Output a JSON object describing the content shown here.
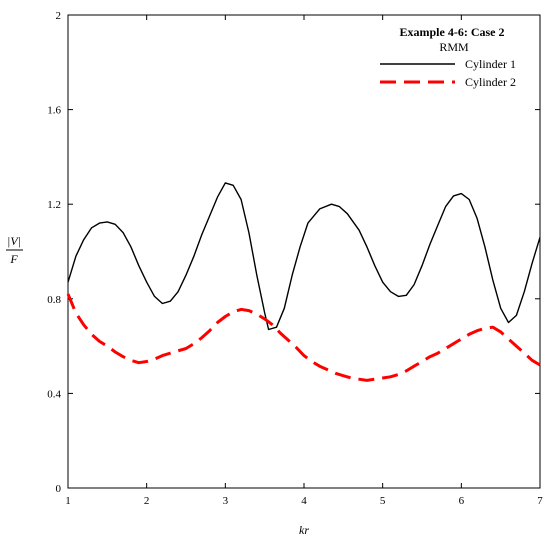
{
  "chart_data": {
    "type": "line",
    "title": "Example 4-6: Case 2",
    "subtitle": "RMM",
    "xlabel": "kr",
    "ylabel_numerator": "|V|",
    "ylabel_denominator": "F",
    "xlim": [
      1,
      7
    ],
    "ylim": [
      0,
      2
    ],
    "x_ticks": [
      1,
      2,
      3,
      4,
      5,
      6,
      7
    ],
    "y_ticks": [
      0,
      0.4,
      0.8,
      1.2,
      1.6,
      2
    ],
    "y_tick_labels": [
      "0",
      "0.4",
      "0.8",
      "1.2",
      "1.6",
      "2"
    ],
    "grid": false,
    "legend_position": "top-right",
    "series": [
      {
        "name": "Cylinder 1",
        "color": "#000000",
        "dash": "solid",
        "points": [
          [
            1.0,
            0.87
          ],
          [
            1.1,
            0.98
          ],
          [
            1.2,
            1.05
          ],
          [
            1.3,
            1.1
          ],
          [
            1.4,
            1.12
          ],
          [
            1.5,
            1.125
          ],
          [
            1.6,
            1.115
          ],
          [
            1.7,
            1.08
          ],
          [
            1.8,
            1.02
          ],
          [
            1.9,
            0.94
          ],
          [
            2.0,
            0.87
          ],
          [
            2.1,
            0.81
          ],
          [
            2.2,
            0.78
          ],
          [
            2.3,
            0.79
          ],
          [
            2.4,
            0.83
          ],
          [
            2.5,
            0.9
          ],
          [
            2.6,
            0.98
          ],
          [
            2.7,
            1.07
          ],
          [
            2.8,
            1.15
          ],
          [
            2.9,
            1.23
          ],
          [
            3.0,
            1.29
          ],
          [
            3.1,
            1.28
          ],
          [
            3.2,
            1.22
          ],
          [
            3.3,
            1.08
          ],
          [
            3.4,
            0.9
          ],
          [
            3.5,
            0.74
          ],
          [
            3.55,
            0.67
          ],
          [
            3.65,
            0.68
          ],
          [
            3.75,
            0.76
          ],
          [
            3.85,
            0.9
          ],
          [
            3.95,
            1.02
          ],
          [
            4.05,
            1.12
          ],
          [
            4.2,
            1.18
          ],
          [
            4.35,
            1.2
          ],
          [
            4.45,
            1.19
          ],
          [
            4.55,
            1.16
          ],
          [
            4.7,
            1.09
          ],
          [
            4.8,
            1.02
          ],
          [
            4.9,
            0.94
          ],
          [
            5.0,
            0.87
          ],
          [
            5.1,
            0.83
          ],
          [
            5.2,
            0.81
          ],
          [
            5.3,
            0.815
          ],
          [
            5.4,
            0.86
          ],
          [
            5.5,
            0.94
          ],
          [
            5.6,
            1.03
          ],
          [
            5.7,
            1.11
          ],
          [
            5.8,
            1.19
          ],
          [
            5.9,
            1.235
          ],
          [
            6.0,
            1.245
          ],
          [
            6.1,
            1.22
          ],
          [
            6.2,
            1.14
          ],
          [
            6.3,
            1.02
          ],
          [
            6.4,
            0.88
          ],
          [
            6.5,
            0.76
          ],
          [
            6.6,
            0.7
          ],
          [
            6.7,
            0.73
          ],
          [
            6.8,
            0.83
          ],
          [
            6.9,
            0.95
          ],
          [
            7.0,
            1.06
          ]
        ]
      },
      {
        "name": "Cylinder 2",
        "color": "#ff0000",
        "dash": "dashed",
        "points": [
          [
            1.0,
            0.82
          ],
          [
            1.1,
            0.74
          ],
          [
            1.2,
            0.69
          ],
          [
            1.3,
            0.65
          ],
          [
            1.4,
            0.62
          ],
          [
            1.5,
            0.6
          ],
          [
            1.6,
            0.575
          ],
          [
            1.7,
            0.555
          ],
          [
            1.8,
            0.54
          ],
          [
            1.9,
            0.53
          ],
          [
            2.0,
            0.535
          ],
          [
            2.1,
            0.545
          ],
          [
            2.2,
            0.56
          ],
          [
            2.4,
            0.58
          ],
          [
            2.5,
            0.59
          ],
          [
            2.6,
            0.61
          ],
          [
            2.7,
            0.635
          ],
          [
            2.8,
            0.665
          ],
          [
            2.9,
            0.7
          ],
          [
            3.0,
            0.725
          ],
          [
            3.1,
            0.745
          ],
          [
            3.2,
            0.755
          ],
          [
            3.3,
            0.75
          ],
          [
            3.4,
            0.735
          ],
          [
            3.5,
            0.715
          ],
          [
            3.6,
            0.69
          ],
          [
            3.7,
            0.655
          ],
          [
            3.8,
            0.625
          ],
          [
            3.9,
            0.595
          ],
          [
            4.0,
            0.56
          ],
          [
            4.1,
            0.535
          ],
          [
            4.2,
            0.515
          ],
          [
            4.3,
            0.5
          ],
          [
            4.4,
            0.485
          ],
          [
            4.5,
            0.475
          ],
          [
            4.6,
            0.465
          ],
          [
            4.7,
            0.46
          ],
          [
            4.8,
            0.455
          ],
          [
            4.9,
            0.46
          ],
          [
            5.0,
            0.465
          ],
          [
            5.1,
            0.47
          ],
          [
            5.2,
            0.48
          ],
          [
            5.3,
            0.495
          ],
          [
            5.4,
            0.515
          ],
          [
            5.5,
            0.535
          ],
          [
            5.6,
            0.555
          ],
          [
            5.7,
            0.57
          ],
          [
            5.8,
            0.59
          ],
          [
            5.9,
            0.61
          ],
          [
            6.0,
            0.63
          ],
          [
            6.1,
            0.65
          ],
          [
            6.2,
            0.665
          ],
          [
            6.3,
            0.675
          ],
          [
            6.4,
            0.68
          ],
          [
            6.5,
            0.66
          ],
          [
            6.6,
            0.63
          ],
          [
            6.7,
            0.6
          ],
          [
            6.8,
            0.57
          ],
          [
            6.9,
            0.54
          ],
          [
            7.0,
            0.52
          ]
        ]
      }
    ]
  }
}
